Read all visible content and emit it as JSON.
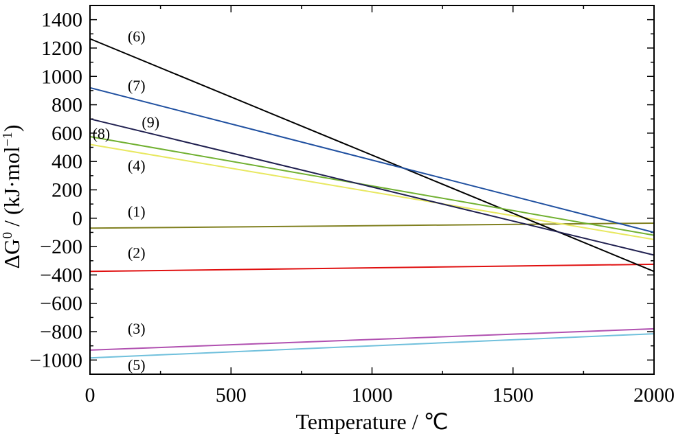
{
  "chart_data": {
    "type": "line",
    "title": "",
    "xlabel": "Temperature / ℃",
    "ylabel_prefix": "ΔG",
    "ylabel_sup0": "0",
    "ylabel_main": " / (kJ·mol",
    "ylabel_sup1": "−1",
    "ylabel_close": ")",
    "xlim": [
      0,
      2000
    ],
    "ylim": [
      -1100,
      1500
    ],
    "xticks": [
      0,
      500,
      1000,
      1500,
      2000
    ],
    "xtick_labels": [
      "0",
      "500",
      "1000",
      "1500",
      "2000"
    ],
    "yticks": [
      -1000,
      -800,
      -600,
      -400,
      -200,
      0,
      200,
      400,
      600,
      800,
      1000,
      1200,
      1400
    ],
    "ytick_labels": [
      "−1000",
      "−800",
      "−600",
      "−400",
      "−200",
      "0",
      "200",
      "400",
      "600",
      "800",
      "1000",
      "1200",
      "1400"
    ],
    "grid": false,
    "series": [
      {
        "name": "(1)",
        "color": "#808020",
        "x": [
          0,
          2000
        ],
        "y": [
          -70,
          -35
        ],
        "label_at": [
          165,
          10
        ]
      },
      {
        "name": "(2)",
        "color": "#e01010",
        "x": [
          0,
          2000
        ],
        "y": [
          -375,
          -325
        ],
        "label_at": [
          165,
          -280
        ]
      },
      {
        "name": "(3)",
        "color": "#b050b0",
        "x": [
          0,
          2000
        ],
        "y": [
          -930,
          -780
        ],
        "label_at": [
          165,
          -815
        ]
      },
      {
        "name": "(4)",
        "color": "#e8e860",
        "x": [
          0,
          2000
        ],
        "y": [
          520,
          -150
        ],
        "label_at": [
          165,
          335
        ]
      },
      {
        "name": "(5)",
        "color": "#70c0dc",
        "x": [
          0,
          2000
        ],
        "y": [
          -985,
          -815
        ],
        "label_at": [
          165,
          -1070
        ]
      },
      {
        "name": "(6)",
        "color": "#000000",
        "x": [
          0,
          2000
        ],
        "y": [
          1265,
          -375
        ],
        "label_at": [
          165,
          1245
        ]
      },
      {
        "name": "(7)",
        "color": "#2050a0",
        "x": [
          0,
          2000
        ],
        "y": [
          920,
          -100
        ],
        "label_at": [
          165,
          900
        ]
      },
      {
        "name": "(8)",
        "color": "#70b030",
        "x": [
          0,
          2000
        ],
        "y": [
          575,
          -120
        ],
        "label_at": [
          40,
          560
        ]
      },
      {
        "name": "(9)",
        "color": "#202050",
        "x": [
          0,
          2000
        ],
        "y": [
          700,
          -260
        ],
        "label_at": [
          215,
          640
        ]
      }
    ]
  }
}
